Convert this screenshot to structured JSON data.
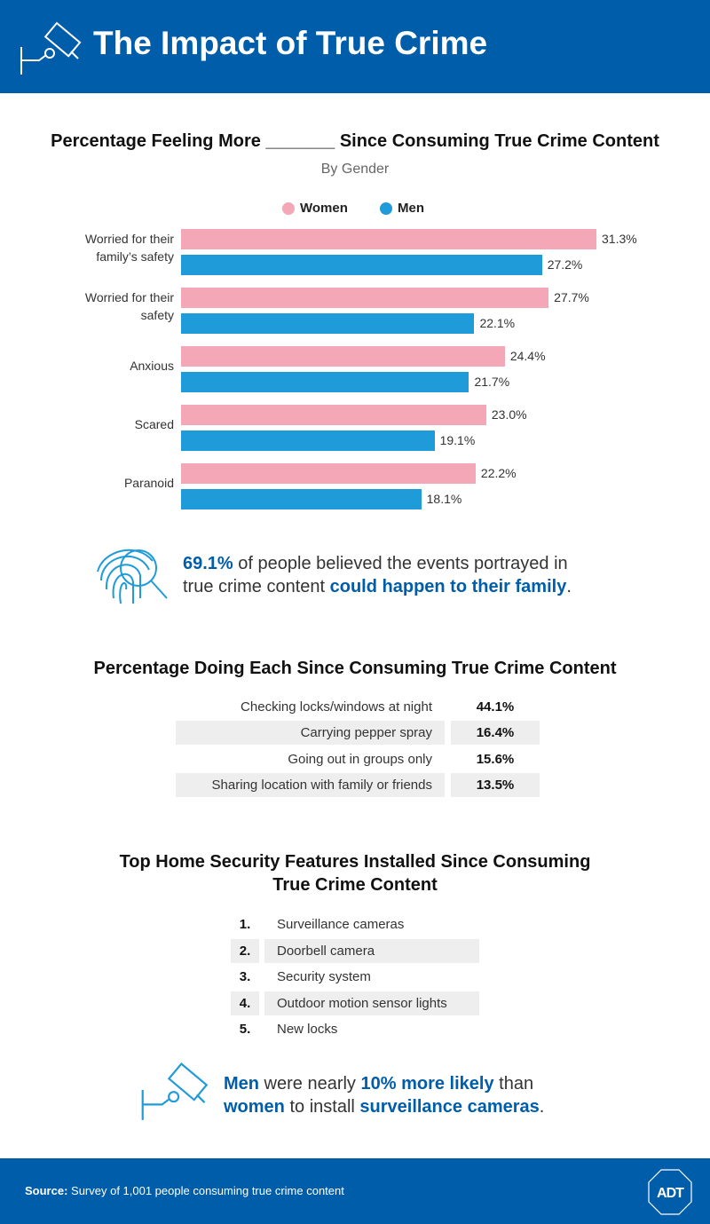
{
  "header": {
    "title": "The Impact of True Crime",
    "icon": "security-camera-icon"
  },
  "chart_data": {
    "type": "bar",
    "orientation": "horizontal",
    "title": "Percentage Feeling More _______ Since Consuming True Crime Content",
    "subtitle": "By Gender",
    "categories": [
      [
        "Worried for their",
        "family’s safety"
      ],
      [
        "Worried for their",
        "safety"
      ],
      [
        "Anxious"
      ],
      [
        "Scared"
      ],
      [
        "Paranoid"
      ]
    ],
    "series": [
      {
        "name": "Women",
        "color": "#F4A7B7",
        "values": [
          31.3,
          27.7,
          24.4,
          23.0,
          22.2
        ],
        "labels": [
          "31.3%",
          "27.7%",
          "24.4%",
          "23.0%",
          "22.2%"
        ]
      },
      {
        "name": "Men",
        "color": "#1F9BD9",
        "values": [
          27.2,
          22.1,
          21.7,
          19.1,
          18.1
        ],
        "labels": [
          "27.2%",
          "22.1%",
          "21.7%",
          "19.1%",
          "18.1%"
        ]
      }
    ],
    "xlim": [
      0,
      31.3
    ],
    "legend": "top-center",
    "grid": false
  },
  "callout1": {
    "stat": "69.1%",
    "text1": " of people believed the events portrayed in",
    "text2": "true crime content ",
    "highlight": "could happen to their family",
    "end": "."
  },
  "doing": {
    "title": "Percentage Doing Each Since Consuming True Crime Content",
    "rows": [
      {
        "label": "Checking locks/windows at night",
        "value": "44.1%"
      },
      {
        "label": "Carrying pepper spray",
        "value": "16.4%"
      },
      {
        "label": "Going out in groups only",
        "value": "15.6%"
      },
      {
        "label": "Sharing location with family or friends",
        "value": "13.5%"
      }
    ]
  },
  "security": {
    "title1": "Top Home Security Features Installed Since Consuming",
    "title2": "True Crime Content",
    "items": [
      {
        "rank": "1.",
        "label": "Surveillance cameras"
      },
      {
        "rank": "2.",
        "label": "Doorbell camera"
      },
      {
        "rank": "3.",
        "label": "Security system"
      },
      {
        "rank": "4.",
        "label": "Outdoor motion sensor lights"
      },
      {
        "rank": "5.",
        "label": "New locks"
      }
    ]
  },
  "callout2": {
    "a": "Men",
    "b": " were nearly ",
    "c": "10% more likely",
    "d": " than",
    "e": "women",
    "f": " to install ",
    "g": "surveillance cameras",
    "h": "."
  },
  "footer": {
    "source_label": "Source:",
    "source_text": " Survey of 1,001 people consuming true crime content",
    "logo": "ADT"
  }
}
